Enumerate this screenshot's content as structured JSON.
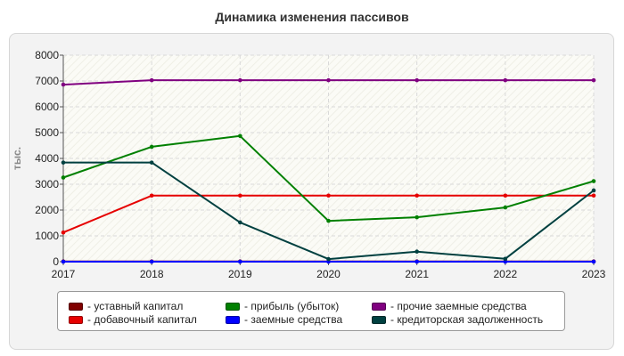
{
  "title": "Динамика изменения пассивов",
  "chart_data": {
    "type": "line",
    "title": "Динамика изменения пассивов",
    "ylabel": "тыс.",
    "xlabel": "",
    "x": [
      "2017",
      "2018",
      "2019",
      "2020",
      "2021",
      "2022",
      "2023"
    ],
    "ylim": [
      0,
      8000
    ],
    "yticks": [
      0,
      1000,
      2000,
      3000,
      4000,
      5000,
      6000,
      7000,
      8000
    ],
    "grid": true,
    "legend_position": "bottom",
    "series": [
      {
        "name": "уставный капитал",
        "color": "#800000",
        "values": [
          10,
          10,
          10,
          10,
          10,
          10,
          10
        ]
      },
      {
        "name": "добавочный капитал",
        "color": "#e60000",
        "values": [
          1130,
          2560,
          2560,
          2560,
          2560,
          2560,
          2560
        ]
      },
      {
        "name": "прибыль (убыток)",
        "color": "#008000",
        "values": [
          3260,
          4450,
          4870,
          1580,
          1720,
          2100,
          3120
        ]
      },
      {
        "name": "заемные средства",
        "color": "#0000ff",
        "values": [
          0,
          0,
          0,
          0,
          0,
          0,
          0
        ]
      },
      {
        "name": "прочие заемные средства",
        "color": "#800080",
        "values": [
          6860,
          7030,
          7030,
          7030,
          7030,
          7030,
          7030
        ]
      },
      {
        "name": "кредиторская задолженность",
        "color": "#004040",
        "values": [
          3840,
          3840,
          1520,
          100,
          390,
          110,
          2760
        ]
      }
    ]
  },
  "legend": {
    "items": [
      {
        "label": "- уставный капитал",
        "color": "#800000"
      },
      {
        "label": "- добавочный капитал",
        "color": "#e60000"
      },
      {
        "label": "- прибыль (убыток)",
        "color": "#008000"
      },
      {
        "label": "- заемные средства",
        "color": "#0000ff"
      },
      {
        "label": "- прочие заемные средства",
        "color": "#800080"
      },
      {
        "label": "- кредиторская задолженность",
        "color": "#004040"
      }
    ]
  }
}
